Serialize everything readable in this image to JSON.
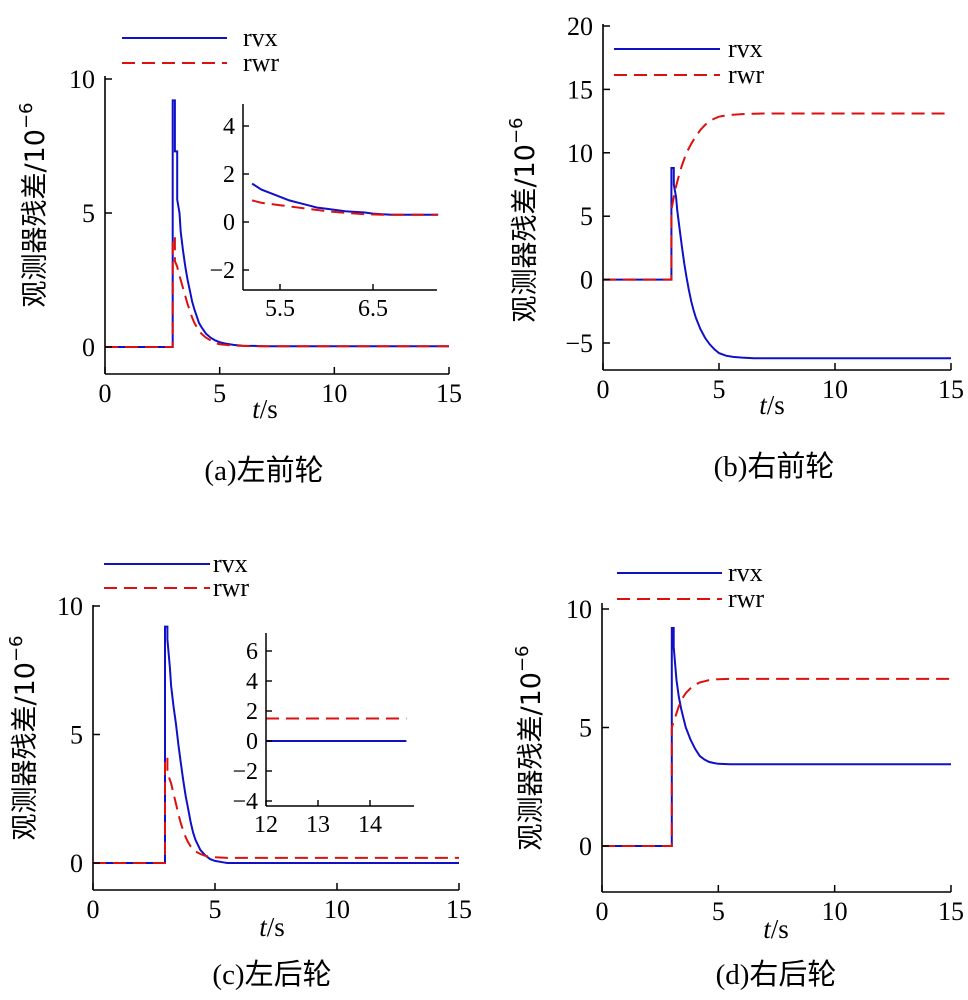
{
  "colors": {
    "rvx": "#1010c8",
    "rwr": "#dd1010",
    "axis": "#000000"
  },
  "chart_data": [
    {
      "type": "line",
      "caption": "(a)左前轮",
      "ylabel_text": "观测器残差/10",
      "ylabel_exp": "−6",
      "xlabel_t": "t",
      "xlabel_unit": "/s",
      "xlim": [
        0,
        15
      ],
      "ylim": [
        -1,
        10
      ],
      "xticks": [
        "0",
        "5",
        "10",
        "15"
      ],
      "yticks": [
        "0",
        "5",
        "10"
      ],
      "legend": [
        "rvx",
        "rwr"
      ],
      "series": [
        {
          "name": "rvx",
          "x": [
            0,
            2.95,
            2.95,
            3.05,
            3.05,
            3.15,
            3.15,
            3.25,
            3.3,
            3.4,
            3.5,
            3.6,
            3.7,
            3.8,
            3.9,
            4.0,
            4.1,
            4.2,
            4.4,
            4.6,
            4.8,
            5.0,
            5.3,
            5.6,
            6.0,
            6.5,
            7.0,
            15
          ],
          "y": [
            0,
            0,
            9.2,
            9.2,
            7.3,
            7.3,
            5.5,
            5.0,
            4.3,
            3.6,
            3.0,
            2.5,
            2.1,
            1.7,
            1.4,
            1.15,
            0.9,
            0.75,
            0.5,
            0.35,
            0.25,
            0.18,
            0.12,
            0.08,
            0.05,
            0.04,
            0.03,
            0.03
          ]
        },
        {
          "name": "rwr",
          "x": [
            0,
            2.95,
            2.95,
            3.05,
            3.05,
            3.15,
            3.2,
            3.3,
            3.4,
            3.5,
            3.6,
            3.7,
            3.8,
            3.9,
            4.0,
            4.2,
            4.4,
            4.6,
            4.8,
            5.0,
            5.5,
            6.0,
            6.5,
            15
          ],
          "y": [
            0,
            0,
            4.1,
            4.1,
            3.2,
            3.0,
            2.8,
            2.5,
            2.2,
            1.9,
            1.6,
            1.35,
            1.1,
            0.9,
            0.75,
            0.5,
            0.35,
            0.25,
            0.15,
            0.1,
            0.06,
            0.04,
            0.03,
            0.03
          ]
        }
      ],
      "inset": {
        "xlim": [
          5.2,
          7.2
        ],
        "ylim": [
          -3,
          5
        ],
        "xticks": [
          "5.5",
          "6.5"
        ],
        "yticks": [
          "4",
          "2",
          "0",
          "−2"
        ],
        "series": [
          {
            "name": "rvx",
            "x": [
              5.2,
              5.3,
              5.4,
              5.5,
              5.6,
              5.7,
              5.8,
              5.9,
              6.0,
              6.1,
              6.2,
              6.3,
              6.4,
              6.5,
              6.6,
              6.7,
              6.8,
              6.9,
              7.2
            ],
            "y": [
              1.6,
              1.35,
              1.2,
              1.05,
              0.9,
              0.8,
              0.7,
              0.6,
              0.55,
              0.5,
              0.45,
              0.42,
              0.4,
              0.35,
              0.32,
              0.3,
              0.3,
              0.3,
              0.3
            ]
          },
          {
            "name": "rwr",
            "x": [
              5.2,
              5.3,
              5.4,
              5.5,
              5.6,
              5.8,
              6.0,
              6.2,
              6.4,
              6.6,
              6.8,
              7.2
            ],
            "y": [
              0.9,
              0.8,
              0.75,
              0.7,
              0.65,
              0.55,
              0.45,
              0.38,
              0.33,
              0.3,
              0.3,
              0.3
            ]
          }
        ]
      }
    },
    {
      "type": "line",
      "caption": "(b)右前轮",
      "ylabel_text": "观测器残差/10",
      "ylabel_exp": "−6",
      "xlabel_t": "t",
      "xlabel_unit": "/s",
      "xlim": [
        0,
        15
      ],
      "ylim": [
        -7,
        20
      ],
      "xticks": [
        "0",
        "5",
        "10",
        "15"
      ],
      "yticks": [
        "−5",
        "0",
        "5",
        "10",
        "15",
        "20"
      ],
      "legend": [
        "rvx",
        "rwr"
      ],
      "series": [
        {
          "name": "rvx",
          "x": [
            0,
            2.95,
            2.95,
            3.05,
            3.05,
            3.15,
            3.2,
            3.3,
            3.4,
            3.5,
            3.6,
            3.7,
            3.8,
            3.9,
            4.0,
            4.2,
            4.4,
            4.6,
            4.8,
            5.0,
            5.3,
            5.6,
            6.0,
            6.5,
            7.0,
            15
          ],
          "y": [
            0,
            0,
            8.8,
            8.8,
            7.5,
            6.5,
            5.5,
            4.0,
            2.6,
            1.3,
            0.2,
            -0.8,
            -1.7,
            -2.4,
            -3.0,
            -3.9,
            -4.6,
            -5.1,
            -5.5,
            -5.8,
            -6.0,
            -6.1,
            -6.15,
            -6.2,
            -6.2,
            -6.2
          ]
        },
        {
          "name": "rwr",
          "x": [
            0,
            2.95,
            2.95,
            3.05,
            3.1,
            3.2,
            3.3,
            3.4,
            3.5,
            3.6,
            3.8,
            4.0,
            4.2,
            4.4,
            4.6,
            4.8,
            5.0,
            5.3,
            5.6,
            6.0,
            6.5,
            7.0,
            15
          ],
          "y": [
            0,
            0,
            5.5,
            6.5,
            7.0,
            7.7,
            8.4,
            9.0,
            9.5,
            10.0,
            10.7,
            11.3,
            11.8,
            12.2,
            12.5,
            12.7,
            12.85,
            12.95,
            13.0,
            13.05,
            13.08,
            13.1,
            13.1
          ]
        }
      ]
    },
    {
      "type": "line",
      "caption": "(c)左后轮",
      "ylabel_text": "观测器残差/10",
      "ylabel_exp": "−6",
      "xlabel_t": "t",
      "xlabel_unit": "/s",
      "xlim": [
        0,
        15
      ],
      "ylim": [
        -1,
        10
      ],
      "xticks": [
        "0",
        "5",
        "10",
        "15"
      ],
      "yticks": [
        "0",
        "5",
        "10"
      ],
      "legend": [
        "rvx",
        "rwr"
      ],
      "series": [
        {
          "name": "rvx",
          "x": [
            0,
            2.95,
            2.95,
            3.05,
            3.05,
            3.15,
            3.2,
            3.3,
            3.4,
            3.5,
            3.6,
            3.7,
            3.8,
            3.9,
            4.0,
            4.1,
            4.2,
            4.4,
            4.6,
            4.8,
            5.0,
            5.3,
            5.5,
            15
          ],
          "y": [
            0,
            0,
            9.2,
            9.2,
            8.7,
            7.6,
            6.9,
            6.1,
            5.4,
            4.6,
            3.9,
            3.2,
            2.6,
            2.1,
            1.6,
            1.2,
            0.9,
            0.5,
            0.3,
            0.15,
            0.08,
            0.03,
            0.0,
            0.0
          ]
        },
        {
          "name": "rwr",
          "x": [
            0,
            2.95,
            2.95,
            3.05,
            3.05,
            3.2,
            3.3,
            3.4,
            3.5,
            3.6,
            3.7,
            3.8,
            3.9,
            4.0,
            4.2,
            4.4,
            4.6,
            4.8,
            5.0,
            5.5,
            6.0,
            15
          ],
          "y": [
            0,
            0,
            4.1,
            4.1,
            3.5,
            3.1,
            2.7,
            2.3,
            1.9,
            1.55,
            1.25,
            1.0,
            0.8,
            0.65,
            0.45,
            0.35,
            0.28,
            0.24,
            0.22,
            0.2,
            0.2,
            0.2
          ]
        }
      ],
      "inset": {
        "xlim": [
          12,
          14.7
        ],
        "ylim": [
          -4.5,
          7
        ],
        "xticks": [
          "12",
          "13",
          "14"
        ],
        "yticks": [
          "6",
          "4",
          "2",
          "0",
          "−2",
          "−4"
        ],
        "series": [
          {
            "name": "rvx",
            "x": [
              12,
              14.7
            ],
            "y": [
              0,
              0
            ]
          },
          {
            "name": "rwr",
            "x": [
              12,
              14.7
            ],
            "y": [
              1.5,
              1.5
            ]
          }
        ]
      }
    },
    {
      "type": "line",
      "caption": "(d)右后轮",
      "ylabel_text": "观测器残差/10",
      "ylabel_exp": "−6",
      "xlabel_t": "t",
      "xlabel_unit": "/s",
      "xlim": [
        0,
        15
      ],
      "ylim": [
        -2,
        10
      ],
      "xticks": [
        "0",
        "5",
        "10",
        "15"
      ],
      "yticks": [
        "0",
        "5",
        "10"
      ],
      "legend": [
        "rvx",
        "rwr"
      ],
      "series": [
        {
          "name": "rvx",
          "x": [
            0,
            3.0,
            3.0,
            3.08,
            3.08,
            3.15,
            3.2,
            3.3,
            3.4,
            3.5,
            3.6,
            3.8,
            4.0,
            4.2,
            4.4,
            4.6,
            4.8,
            5.0,
            5.5,
            6.0,
            15
          ],
          "y": [
            0,
            0,
            9.2,
            9.2,
            8.4,
            7.6,
            7.0,
            6.3,
            5.8,
            5.4,
            5.0,
            4.5,
            4.1,
            3.8,
            3.65,
            3.55,
            3.5,
            3.47,
            3.45,
            3.45,
            3.45
          ]
        },
        {
          "name": "rwr",
          "x": [
            0,
            3.0,
            3.0,
            3.1,
            3.2,
            3.3,
            3.4,
            3.5,
            3.6,
            3.8,
            4.0,
            4.2,
            4.4,
            4.6,
            4.8,
            5.0,
            5.5,
            6.0,
            7.0,
            15
          ],
          "y": [
            0,
            0,
            5.0,
            5.3,
            5.6,
            5.9,
            6.1,
            6.3,
            6.45,
            6.65,
            6.8,
            6.9,
            6.95,
            7.0,
            7.02,
            7.04,
            7.05,
            7.05,
            7.05,
            7.05
          ]
        }
      ]
    }
  ]
}
